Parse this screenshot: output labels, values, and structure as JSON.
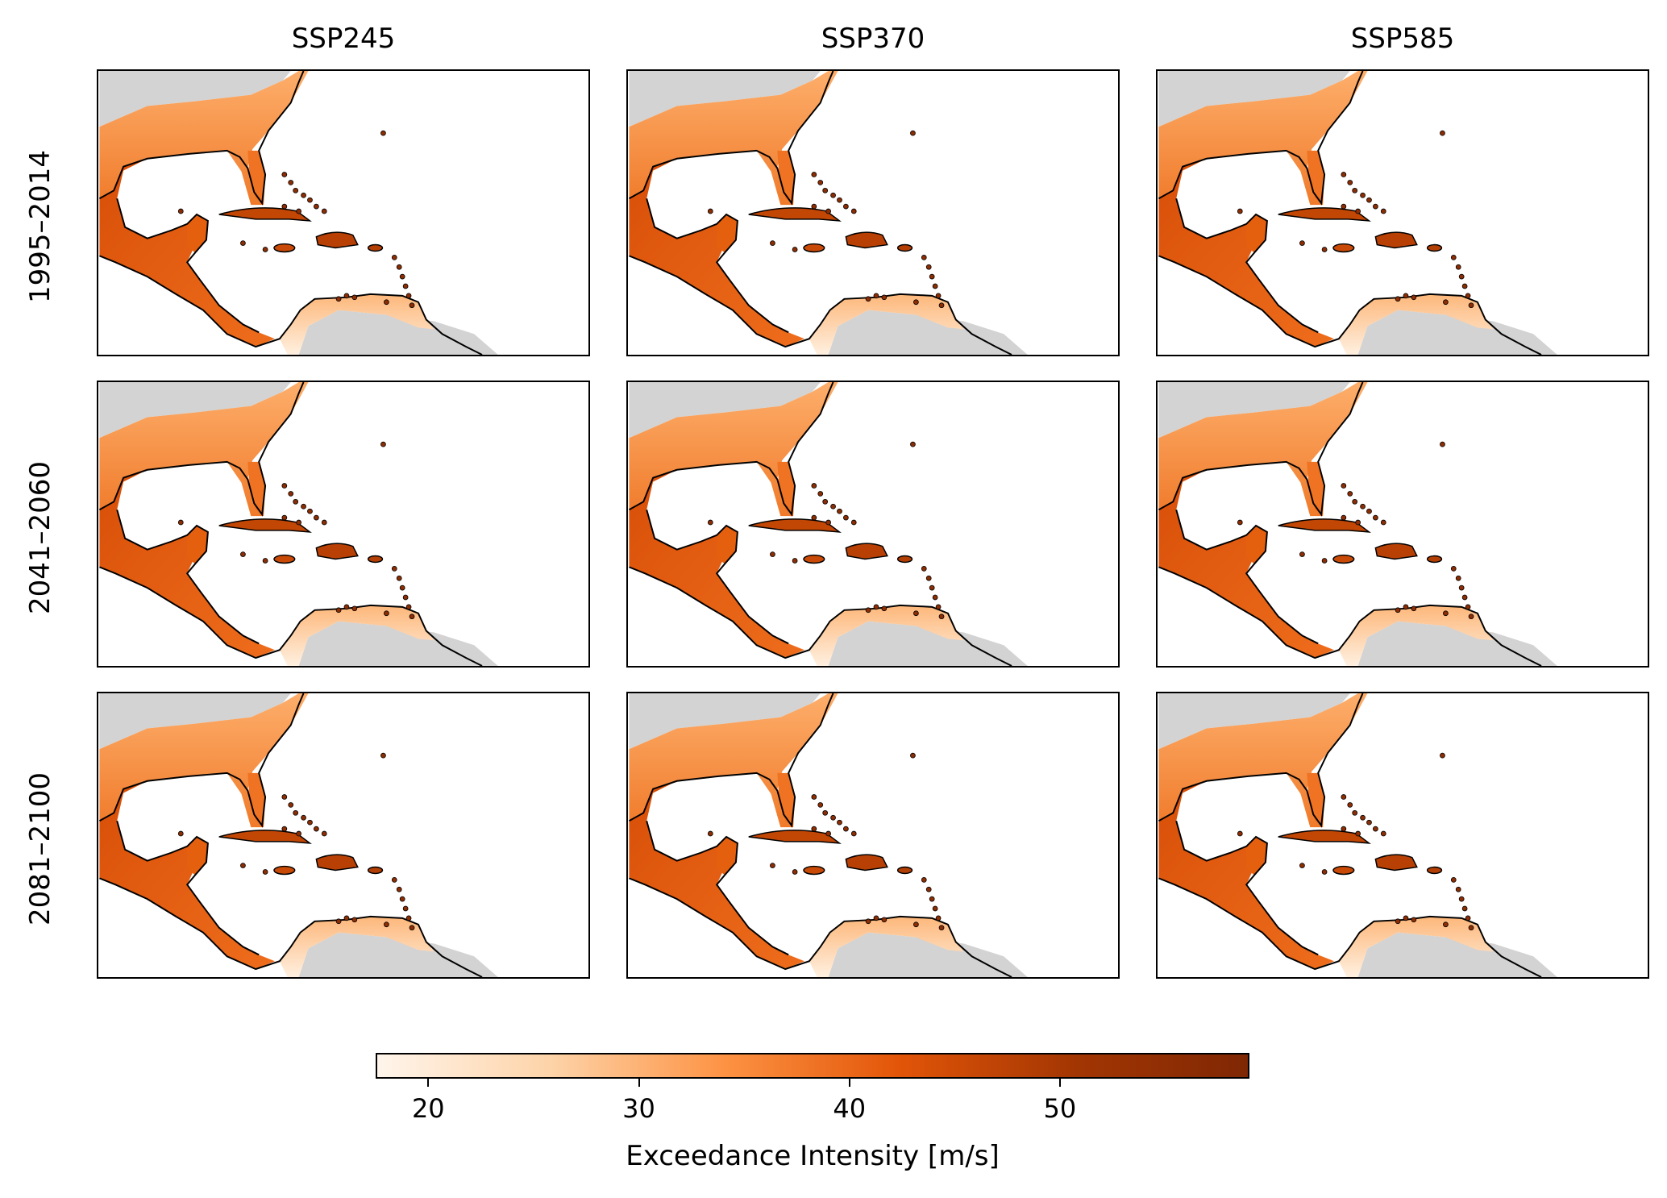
{
  "columns": [
    "SSP245",
    "SSP370",
    "SSP585"
  ],
  "rows": [
    "1995–2014",
    "2041–2060",
    "2081–2100"
  ],
  "colorbar": {
    "label": "Exceedance Intensity [m/s]",
    "ticks": [
      20,
      30,
      40,
      50
    ],
    "min": 17.5,
    "max": 59,
    "colormap": "Oranges",
    "stops": [
      "#fff5eb",
      "#fdd3a8",
      "#fd9243",
      "#e25508",
      "#a33603",
      "#7f2704"
    ]
  },
  "colors": {
    "land": "#d3d3d3",
    "coast": "#000000",
    "ocean": "#ffffff"
  }
}
